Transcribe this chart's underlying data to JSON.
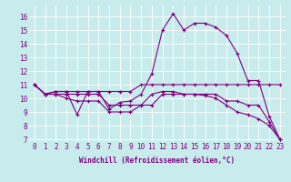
{
  "title": "",
  "xlabel": "Windchill (Refroidissement éolien,°C)",
  "ylabel": "",
  "background_color": "#c8ecec",
  "grid_color": "#ffffff",
  "line_color": "#800080",
  "xlim": [
    -0.5,
    23.5
  ],
  "ylim": [
    6.8,
    16.8
  ],
  "xticks": [
    0,
    1,
    2,
    3,
    4,
    5,
    6,
    7,
    8,
    9,
    10,
    11,
    12,
    13,
    14,
    15,
    16,
    17,
    18,
    19,
    20,
    21,
    22,
    23
  ],
  "yticks": [
    7,
    8,
    9,
    10,
    11,
    12,
    13,
    14,
    15,
    16
  ],
  "line1": [
    11.0,
    10.3,
    10.5,
    10.5,
    8.8,
    10.5,
    10.5,
    9.2,
    9.7,
    9.8,
    10.3,
    11.8,
    15.0,
    16.2,
    15.0,
    15.5,
    15.5,
    15.2,
    14.6,
    13.3,
    11.3,
    11.3,
    8.7,
    7.0
  ],
  "line2": [
    11.0,
    10.3,
    10.5,
    10.5,
    10.5,
    10.5,
    10.5,
    10.5,
    10.5,
    10.5,
    11.0,
    11.0,
    11.0,
    11.0,
    11.0,
    11.0,
    11.0,
    11.0,
    11.0,
    11.0,
    11.0,
    11.0,
    11.0,
    11.0
  ],
  "line3": [
    11.0,
    10.3,
    10.3,
    10.3,
    10.3,
    10.3,
    10.3,
    9.5,
    9.5,
    9.5,
    9.5,
    9.5,
    10.3,
    10.3,
    10.3,
    10.3,
    10.3,
    10.3,
    9.8,
    9.8,
    9.5,
    9.5,
    8.3,
    7.0
  ],
  "line4": [
    11.0,
    10.3,
    10.3,
    10.0,
    9.8,
    9.8,
    9.8,
    9.0,
    9.0,
    9.0,
    9.5,
    10.3,
    10.5,
    10.5,
    10.3,
    10.3,
    10.2,
    10.0,
    9.5,
    9.0,
    8.8,
    8.5,
    8.0,
    7.0
  ],
  "tick_fontsize": 5.5,
  "xlabel_fontsize": 5.5
}
